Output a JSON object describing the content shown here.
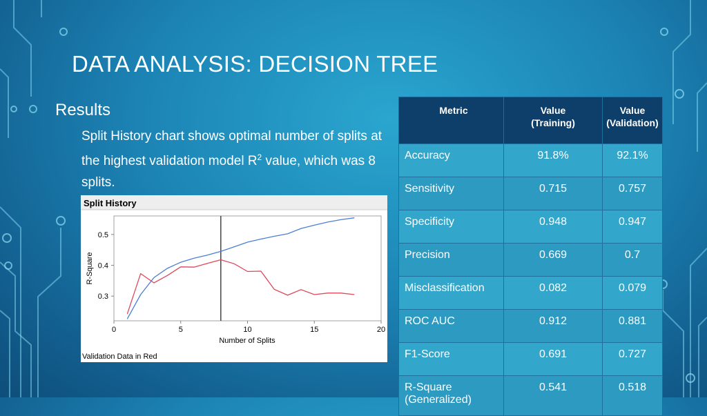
{
  "slide": {
    "title": "DATA ANALYSIS: DECISION TREE",
    "results_heading": "Results",
    "results_text_before": "Split History chart shows optimal number of splits at the highest validation model R",
    "results_superscript": "2",
    "results_text_after": " value, which was 8 splits."
  },
  "chart_data": {
    "type": "line",
    "title": "Split History",
    "xlabel": "Number of Splits",
    "ylabel": "R-Square",
    "xlim": [
      0,
      20
    ],
    "ylim": [
      0.22,
      0.56
    ],
    "xticks": [
      0,
      5,
      10,
      15,
      20
    ],
    "yticks": [
      0.3,
      0.4,
      0.5
    ],
    "grid": false,
    "reference_line_x": 8,
    "footnote": "Validation Data in Red",
    "series": [
      {
        "color": "#4a7fd4",
        "x": [
          1,
          2,
          3,
          4,
          5,
          6,
          7,
          8,
          9,
          10,
          11,
          12,
          13,
          14,
          15,
          16,
          17,
          18
        ],
        "y": [
          0.226,
          0.305,
          0.36,
          0.39,
          0.41,
          0.423,
          0.433,
          0.445,
          0.46,
          0.475,
          0.485,
          0.494,
          0.502,
          0.519,
          0.53,
          0.54,
          0.548,
          0.554
        ]
      },
      {
        "color": "#e0455a",
        "x": [
          1,
          2,
          3,
          4,
          5,
          6,
          7,
          8,
          9,
          10,
          11,
          12,
          13,
          14,
          15,
          16,
          17,
          18
        ],
        "y": [
          0.242,
          0.373,
          0.343,
          0.367,
          0.395,
          0.394,
          0.406,
          0.418,
          0.405,
          0.38,
          0.381,
          0.322,
          0.303,
          0.321,
          0.305,
          0.31,
          0.31,
          0.305
        ]
      }
    ]
  },
  "table": {
    "headers": [
      {
        "line1": "Metric",
        "line2": ""
      },
      {
        "line1": "Value",
        "line2": "(Training)"
      },
      {
        "line1": "Value",
        "line2": "(Validation)"
      }
    ],
    "rows": [
      {
        "metric": "Accuracy",
        "training": "91.8%",
        "validation": "92.1%"
      },
      {
        "metric": "Sensitivity",
        "training": "0.715",
        "validation": "0.757"
      },
      {
        "metric": "Specificity",
        "training": "0.948",
        "validation": "0.947"
      },
      {
        "metric": "Precision",
        "training": "0.669",
        "validation": "0.7"
      },
      {
        "metric": "Misclassification",
        "training": "0.082",
        "validation": "0.079"
      },
      {
        "metric": "ROC AUC",
        "training": "0.912",
        "validation": "0.881"
      },
      {
        "metric": "F1-Score",
        "training": "0.691",
        "validation": "0.727"
      },
      {
        "metric": "R-Square",
        "metric_line2": "(Generalized)",
        "training": "0.541",
        "validation": "0.518"
      }
    ]
  }
}
